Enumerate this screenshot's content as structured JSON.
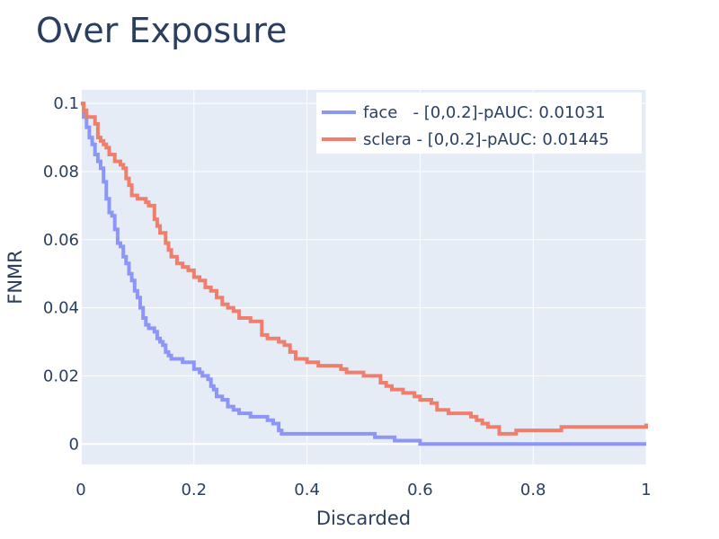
{
  "chart_data": {
    "type": "line",
    "title": "Over Exposure",
    "xlabel": "Discarded",
    "ylabel": "FNMR",
    "xlim": [
      0,
      1
    ],
    "ylim": [
      -0.006,
      0.104
    ],
    "xticks": [
      0,
      0.2,
      0.4,
      0.6,
      0.8,
      1
    ],
    "xtick_labels": [
      "0",
      "0.2",
      "0.4",
      "0.6",
      "0.8",
      "1"
    ],
    "yticks": [
      0,
      0.02,
      0.04,
      0.06,
      0.08,
      0.1
    ],
    "ytick_labels": [
      "0",
      "0.02",
      "0.04",
      "0.06",
      "0.08",
      "0.1"
    ],
    "grid": true,
    "legend_position": "top-right",
    "line_shape": "step",
    "series": [
      {
        "name": "face   - [0,0.2]-pAUC: 0.01031",
        "color": "#8c96f7",
        "x": [
          0,
          0.005,
          0.01,
          0.015,
          0.02,
          0.025,
          0.03,
          0.035,
          0.04,
          0.045,
          0.05,
          0.055,
          0.06,
          0.065,
          0.07,
          0.075,
          0.08,
          0.085,
          0.09,
          0.095,
          0.1,
          0.105,
          0.11,
          0.115,
          0.12,
          0.13,
          0.135,
          0.14,
          0.145,
          0.15,
          0.155,
          0.16,
          0.17,
          0.18,
          0.19,
          0.2,
          0.21,
          0.215,
          0.225,
          0.23,
          0.235,
          0.24,
          0.25,
          0.26,
          0.27,
          0.28,
          0.3,
          0.33,
          0.34,
          0.35,
          0.355,
          0.4,
          0.45,
          0.5,
          0.51,
          0.52,
          0.54,
          0.555,
          0.6,
          0.8,
          1.0
        ],
        "y": [
          0.1,
          0.096,
          0.093,
          0.09,
          0.088,
          0.085,
          0.083,
          0.081,
          0.077,
          0.072,
          0.068,
          0.067,
          0.063,
          0.059,
          0.058,
          0.055,
          0.053,
          0.05,
          0.048,
          0.045,
          0.043,
          0.04,
          0.037,
          0.035,
          0.034,
          0.033,
          0.031,
          0.03,
          0.029,
          0.027,
          0.026,
          0.025,
          0.025,
          0.024,
          0.024,
          0.022,
          0.021,
          0.02,
          0.019,
          0.017,
          0.016,
          0.014,
          0.013,
          0.011,
          0.01,
          0.009,
          0.008,
          0.007,
          0.006,
          0.004,
          0.003,
          0.003,
          0.003,
          0.003,
          0.003,
          0.002,
          0.002,
          0.001,
          0.0,
          0.0,
          0.0
        ]
      },
      {
        "name": "sclera - [0,0.2]-pAUC: 0.01445",
        "color": "#ef7e6c",
        "x": [
          0,
          0.005,
          0.01,
          0.025,
          0.03,
          0.035,
          0.04,
          0.045,
          0.05,
          0.06,
          0.07,
          0.075,
          0.08,
          0.085,
          0.09,
          0.1,
          0.115,
          0.12,
          0.13,
          0.135,
          0.14,
          0.15,
          0.155,
          0.16,
          0.17,
          0.18,
          0.19,
          0.2,
          0.21,
          0.22,
          0.23,
          0.24,
          0.25,
          0.26,
          0.27,
          0.28,
          0.3,
          0.32,
          0.33,
          0.34,
          0.35,
          0.36,
          0.37,
          0.38,
          0.4,
          0.42,
          0.43,
          0.45,
          0.46,
          0.47,
          0.5,
          0.51,
          0.53,
          0.54,
          0.55,
          0.57,
          0.58,
          0.59,
          0.6,
          0.62,
          0.63,
          0.65,
          0.66,
          0.67,
          0.68,
          0.69,
          0.7,
          0.71,
          0.72,
          0.74,
          0.75,
          0.77,
          0.8,
          0.82,
          0.85,
          0.86,
          1.0
        ],
        "y": [
          0.1,
          0.098,
          0.096,
          0.094,
          0.09,
          0.089,
          0.088,
          0.087,
          0.085,
          0.083,
          0.082,
          0.081,
          0.078,
          0.076,
          0.073,
          0.072,
          0.071,
          0.07,
          0.066,
          0.064,
          0.062,
          0.059,
          0.057,
          0.055,
          0.053,
          0.052,
          0.051,
          0.049,
          0.048,
          0.046,
          0.045,
          0.043,
          0.041,
          0.04,
          0.039,
          0.037,
          0.036,
          0.032,
          0.031,
          0.031,
          0.03,
          0.029,
          0.027,
          0.025,
          0.024,
          0.023,
          0.023,
          0.023,
          0.022,
          0.021,
          0.02,
          0.02,
          0.018,
          0.017,
          0.016,
          0.015,
          0.015,
          0.014,
          0.013,
          0.012,
          0.01,
          0.009,
          0.009,
          0.009,
          0.009,
          0.008,
          0.007,
          0.006,
          0.005,
          0.003,
          0.003,
          0.004,
          0.004,
          0.004,
          0.005,
          0.005,
          0.006
        ]
      }
    ]
  }
}
